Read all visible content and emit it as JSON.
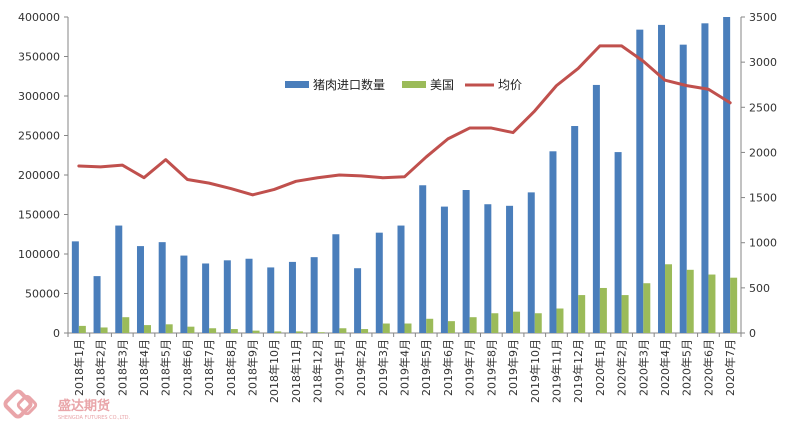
{
  "chart_data": {
    "type": "bar",
    "categories": [
      "2018年1月",
      "2018年2月",
      "2018年3月",
      "2018年4月",
      "2018年5月",
      "2018年6月",
      "2018年7月",
      "2018年8月",
      "2018年9月",
      "2018年10月",
      "2018年11月",
      "2018年12月",
      "2019年1月",
      "2019年2月",
      "2019年3月",
      "2019年4月",
      "2019年5月",
      "2019年6月",
      "2019年7月",
      "2019年8月",
      "2019年9月",
      "2019年10月",
      "2019年11月",
      "2019年12月",
      "2020年1月",
      "2020年2月",
      "2020年3月",
      "2020年4月",
      "2020年5月",
      "2020年6月",
      "2020年7月"
    ],
    "series": [
      {
        "name": "猪肉进口数量",
        "type": "bar",
        "axis": "left",
        "color": "#4a7ebb",
        "values": [
          116000,
          72000,
          136000,
          110000,
          115000,
          98000,
          88000,
          92000,
          94000,
          83000,
          90000,
          96000,
          125000,
          82000,
          127000,
          136000,
          187000,
          160000,
          181000,
          163000,
          161000,
          178000,
          230000,
          262000,
          314000,
          229000,
          384000,
          390000,
          365000,
          392000,
          400000
        ]
      },
      {
        "name": "美国",
        "type": "bar",
        "axis": "left",
        "color": "#9bbb59",
        "values": [
          9000,
          7000,
          20000,
          10000,
          11000,
          8000,
          6000,
          5000,
          3000,
          2000,
          2000,
          1000,
          6000,
          5000,
          12000,
          12000,
          18000,
          15000,
          20000,
          25000,
          27000,
          25000,
          31000,
          48000,
          57000,
          48000,
          63000,
          87000,
          80000,
          74000,
          70000
        ]
      },
      {
        "name": "均价",
        "type": "line",
        "axis": "right",
        "color": "#c0504d",
        "values": [
          1850,
          1840,
          1860,
          1720,
          1920,
          1700,
          1660,
          1600,
          1530,
          1590,
          1680,
          1720,
          1750,
          1740,
          1720,
          1730,
          1950,
          2150,
          2270,
          2270,
          2220,
          2460,
          2740,
          2930,
          3180,
          3180,
          3010,
          2800,
          2740,
          2700,
          2550
        ]
      }
    ],
    "ylim": [
      0,
      400000
    ],
    "yticks": [
      "0",
      "50000",
      "100000",
      "150000",
      "200000",
      "250000",
      "300000",
      "350000",
      "400000"
    ],
    "y2lim": [
      0,
      3500
    ],
    "y2ticks": [
      "0",
      "500",
      "1000",
      "1500",
      "2000",
      "2500",
      "3000",
      "3500"
    ],
    "grid": false,
    "legend": "top-center"
  },
  "watermark": {
    "text": "盛达期货",
    "subtext": "SHENGDA FUTURES CO.,LTD.",
    "color": "#e9a5a9"
  }
}
